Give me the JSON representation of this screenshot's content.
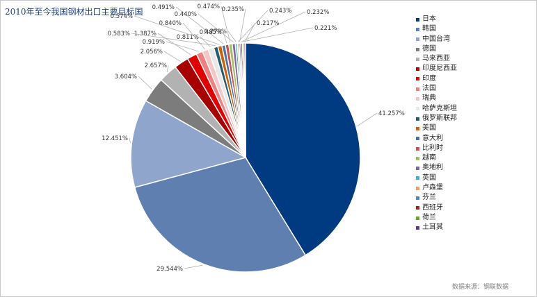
{
  "title": "2010年至今我国钢材出口主要目标国",
  "source": "数据来源：钢联数据",
  "chart_data": {
    "type": "pie",
    "title": "2010年至今我国钢材出口主要目标国",
    "legend_position": "right",
    "slices": [
      {
        "label": "日本",
        "value": 41.257,
        "display": "41.257%",
        "color": "#003a80"
      },
      {
        "label": "韩国",
        "value": 29.544,
        "display": "29.544%",
        "color": "#5f7fb0"
      },
      {
        "label": "中国台湾",
        "value": 12.451,
        "display": "12.451%",
        "color": "#8fa5cc"
      },
      {
        "label": "德国",
        "value": 3.604,
        "display": "3.604%",
        "color": "#7c7c7c"
      },
      {
        "label": "马来西亚",
        "value": 2.657,
        "display": "2.657%",
        "color": "#b2b2b2"
      },
      {
        "label": "印度尼西亚",
        "value": 2.056,
        "display": "2.056%",
        "color": "#a80000"
      },
      {
        "label": "印度",
        "value": 1.387,
        "display": "1.387%",
        "color": "#e00000"
      },
      {
        "label": "法国",
        "value": 0.919,
        "display": "0.919%",
        "color": "#f08080"
      },
      {
        "label": "瑞典",
        "value": 0.84,
        "display": "0.840%",
        "color": "#f5c6c6"
      },
      {
        "label": "哈萨克斯坦",
        "value": 0.811,
        "display": "0.811%",
        "color": "#e8e8e8"
      },
      {
        "label": "俄罗斯联邦",
        "value": 0.583,
        "display": "0.583%",
        "color": "#1f5f6f"
      },
      {
        "label": "美国",
        "value": 0.574,
        "display": "0.574%",
        "color": "#d06000"
      },
      {
        "label": "意大利",
        "value": 0.491,
        "display": "0.491%",
        "color": "#4a70a8"
      },
      {
        "label": "比利时",
        "value": 0.485,
        "display": "0.485%",
        "color": "#c85050"
      },
      {
        "label": "越南",
        "value": 0.474,
        "display": "0.474%",
        "color": "#a0c060"
      },
      {
        "label": "奥地利",
        "value": 0.44,
        "display": "0.440%",
        "color": "#8068a8"
      },
      {
        "label": "英国",
        "value": 0.279,
        "display": "0.279%",
        "color": "#40b0c8"
      },
      {
        "label": "卢森堡",
        "value": 0.243,
        "display": "0.243%",
        "color": "#f0a060"
      },
      {
        "label": "芬兰",
        "value": 0.235,
        "display": "0.235%",
        "color": "#4a88c8"
      },
      {
        "label": "西班牙",
        "value": 0.232,
        "display": "0.232%",
        "color": "#a02020"
      },
      {
        "label": "荷兰",
        "value": 0.221,
        "display": "0.221%",
        "color": "#70a030"
      },
      {
        "label": "土耳其",
        "value": 0.217,
        "display": "0.217%",
        "color": "#5a3a90"
      }
    ]
  }
}
